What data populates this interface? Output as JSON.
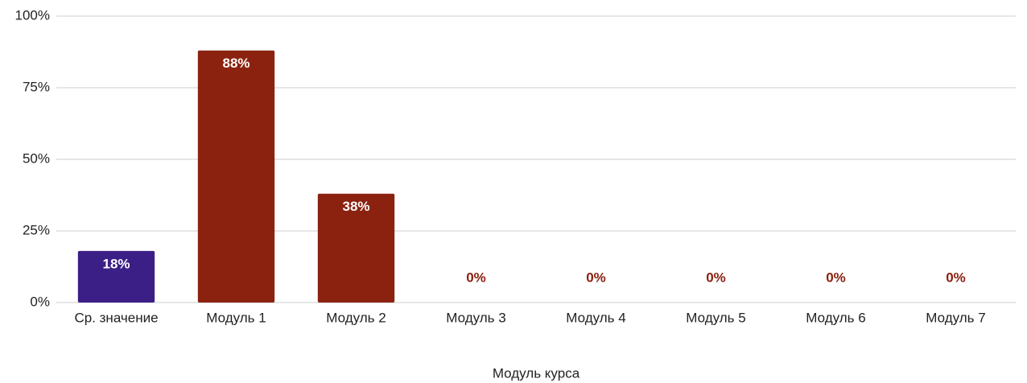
{
  "chart_data": {
    "type": "bar",
    "x_label": "Модуль курса",
    "categories": [
      "Ср. значение",
      "Модуль 1",
      "Модуль 2",
      "Модуль 3",
      "Модуль 4",
      "Модуль 5",
      "Модуль 6",
      "Модуль 7"
    ],
    "values": [
      18,
      88,
      38,
      0,
      0,
      0,
      0,
      0
    ],
    "value_labels": [
      "18%",
      "88%",
      "38%",
      "0%",
      "0%",
      "0%",
      "0%",
      "0%"
    ],
    "colors": [
      "#3b1f86",
      "#8b2210",
      "#8b2210",
      "#8b2210",
      "#8b2210",
      "#8b2210",
      "#8b2210",
      "#8b2210"
    ],
    "ylim": [
      0,
      100
    ],
    "yticks": [
      {
        "value": 0,
        "label": "0%"
      },
      {
        "value": 25,
        "label": "25%"
      },
      {
        "value": 50,
        "label": "50%"
      },
      {
        "value": 75,
        "label": "75%"
      },
      {
        "value": 100,
        "label": "100%"
      }
    ],
    "grid": true
  }
}
